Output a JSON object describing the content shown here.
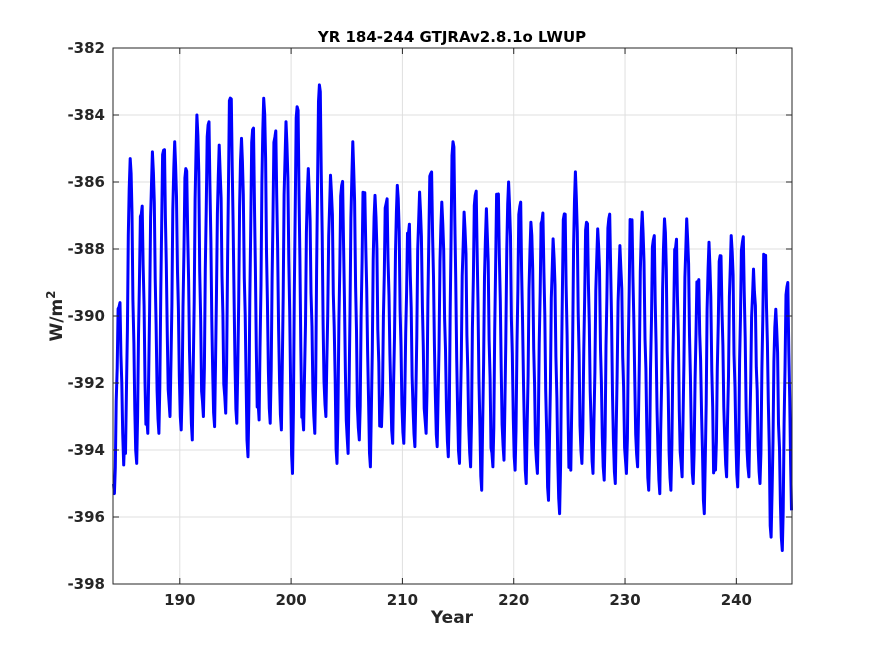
{
  "chart_data": {
    "type": "line",
    "title": "YR 184-244 GTJRAv2.8.1o LWUP",
    "xlabel": "Year",
    "ylabel": "W/m",
    "ylabel_superscript": "2",
    "xlim": [
      184,
      245
    ],
    "ylim": [
      -398,
      -382
    ],
    "x_ticks": [
      190,
      200,
      210,
      220,
      230,
      240
    ],
    "y_ticks": [
      -398,
      -396,
      -394,
      -392,
      -390,
      -388,
      -386,
      -384,
      -382
    ],
    "x_tick_labels": [
      "190",
      "200",
      "210",
      "220",
      "230",
      "240"
    ],
    "y_tick_labels": [
      "-398",
      "-396",
      "-394",
      "-392",
      "-390",
      "-388",
      "-386",
      "-384",
      "-382"
    ],
    "grid": true,
    "line_color": "#0000ff",
    "series": [
      {
        "x_start": 184.0,
        "x_step": 1,
        "annual_max": [
          -389.6,
          -385.3,
          -386.6,
          -385.1,
          -384.8,
          -384.8,
          -385.6,
          -384.0,
          -384.1,
          -384.9,
          -383.2,
          -384.7,
          -384.3,
          -383.5,
          -384.3,
          -384.2,
          -383.5,
          -385.6,
          -383.1,
          -385.8,
          -385.9,
          -384.8,
          -386.1,
          -386.4,
          -386.5,
          -386.1,
          -387.2,
          -386.3,
          -385.5,
          -386.6,
          -384.8,
          -386.9,
          -386.2,
          -386.8,
          -386.1,
          -386.0,
          -386.6,
          -387.2,
          -386.8,
          -387.7,
          -386.7,
          -385.7,
          -387.2,
          -387.4,
          -386.9,
          -387.9,
          -386.9,
          -386.9,
          -387.6,
          -387.1,
          -387.6,
          -387.1,
          -388.8,
          -387.8,
          -388.2,
          -387.6,
          -387.6,
          -388.6,
          -388.0,
          -389.8,
          -389.0
        ],
        "annual_min": [
          -395.3,
          -394.1,
          -394.4,
          -393.5,
          -393.5,
          -393.0,
          -393.4,
          -393.7,
          -393.0,
          -393.3,
          -392.9,
          -393.2,
          -394.2,
          -393.1,
          -393.2,
          -393.4,
          -394.7,
          -393.4,
          -393.5,
          -393.0,
          -394.4,
          -394.1,
          -393.7,
          -394.5,
          -393.3,
          -393.8,
          -393.8,
          -393.9,
          -393.5,
          -393.9,
          -394.2,
          -394.4,
          -394.5,
          -395.2,
          -394.5,
          -394.3,
          -394.6,
          -395.0,
          -394.7,
          -395.5,
          -395.9,
          -394.6,
          -394.4,
          -394.7,
          -394.9,
          -395.0,
          -394.7,
          -394.5,
          -395.2,
          -395.3,
          -395.2,
          -394.8,
          -395.0,
          -395.9,
          -394.6,
          -394.8,
          -395.1,
          -394.8,
          -395.0,
          -396.6,
          -397.0
        ]
      }
    ]
  }
}
